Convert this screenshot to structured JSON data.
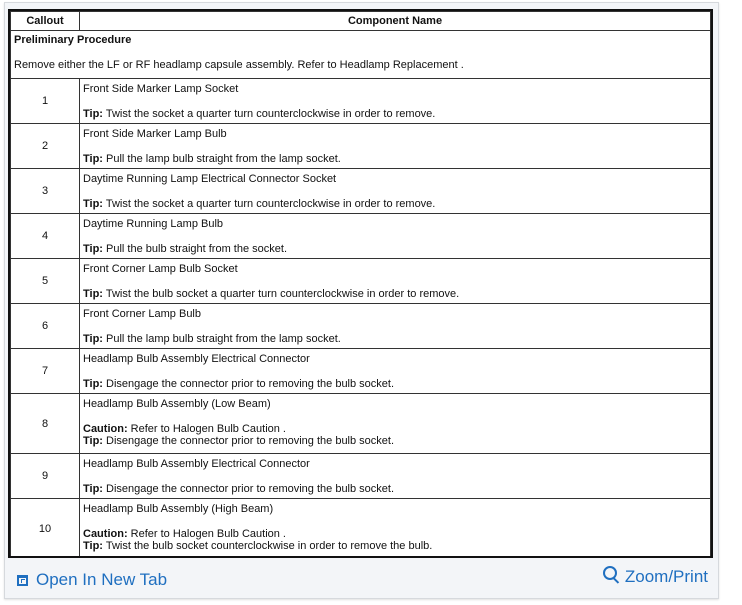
{
  "table": {
    "headers": {
      "callout": "Callout",
      "component": "Component Name"
    },
    "preliminary": {
      "title": "Preliminary Procedure",
      "text": "Remove either the LF or RF headlamp capsule assembly. Refer to Headlamp Replacement ."
    },
    "rows": [
      {
        "callout": "1",
        "name": "Front Side Marker Lamp Socket",
        "notes": [
          {
            "label": "Tip:",
            "text": " Twist the socket a quarter turn counterclockwise in order to remove."
          }
        ]
      },
      {
        "callout": "2",
        "name": "Front Side Marker Lamp Bulb",
        "notes": [
          {
            "label": "Tip:",
            "text": " Pull the lamp bulb straight from the lamp socket."
          }
        ]
      },
      {
        "callout": "3",
        "name": "Daytime Running Lamp Electrical Connector Socket",
        "notes": [
          {
            "label": "Tip:",
            "text": " Twist the socket a quarter turn counterclockwise in order to remove."
          }
        ]
      },
      {
        "callout": "4",
        "name": "Daytime Running Lamp Bulb",
        "notes": [
          {
            "label": "Tip:",
            "text": " Pull the bulb straight from the socket."
          }
        ]
      },
      {
        "callout": "5",
        "name": "Front Corner Lamp Bulb Socket",
        "notes": [
          {
            "label": "Tip:",
            "text": " Twist the bulb socket a quarter turn counterclockwise in order to remove."
          }
        ]
      },
      {
        "callout": "6",
        "name": "Front Corner Lamp Bulb",
        "notes": [
          {
            "label": "Tip:",
            "text": " Pull the lamp bulb straight from the lamp socket."
          }
        ]
      },
      {
        "callout": "7",
        "name": "Headlamp Bulb Assembly Electrical Connector",
        "notes": [
          {
            "label": "Tip:",
            "text": " Disengage the connector prior to removing the bulb socket."
          }
        ]
      },
      {
        "callout": "8",
        "name": "Headlamp Bulb Assembly (Low Beam)",
        "notes": [
          {
            "label": "Caution:",
            "text": " Refer to Halogen Bulb Caution ."
          },
          {
            "label": "Tip:",
            "text": " Disengage the connector prior to removing the bulb socket."
          }
        ]
      },
      {
        "callout": "9",
        "name": "Headlamp Bulb Assembly Electrical Connector",
        "notes": [
          {
            "label": "Tip:",
            "text": " Disengage the connector prior to removing the bulb socket."
          }
        ]
      },
      {
        "callout": "10",
        "name": "Headlamp Bulb Assembly (High Beam)",
        "notes": [
          {
            "label": "Caution:",
            "text": " Refer to Halogen Bulb Caution ."
          },
          {
            "label": "Tip:",
            "text": " Twist the bulb socket counterclockwise in order to remove the bulb."
          }
        ]
      }
    ]
  },
  "footer": {
    "open_new_tab": "Open In New Tab",
    "zoom_print": "Zoom/Print",
    "link_color": "#1f6fc0"
  }
}
